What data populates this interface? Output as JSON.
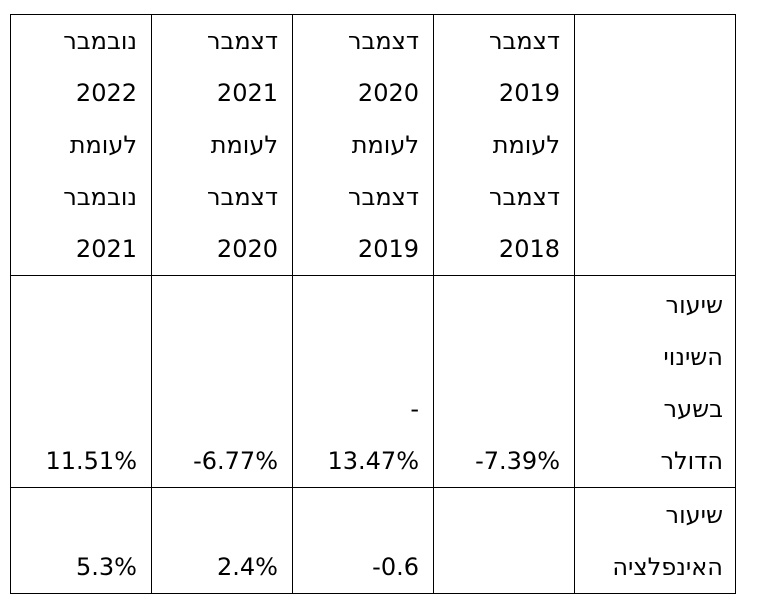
{
  "table": {
    "header": [
      null,
      "דצמבר 2019 לעומת דצמבר 2018",
      "דצמבר 2020 לעומת דצמבר 2019",
      "דצמבר 2021 לעומת דצמבר 2020",
      "נובמבר 2022 לעומת נובמבר 2021"
    ],
    "rows": [
      [
        "שיעור השינוי בשער הדולר",
        "-7.39%",
        "-\n13.47%",
        "-6.77%",
        "11.51%"
      ],
      [
        "שיעור האינפלציה",
        null,
        "-0.6",
        "2.4%",
        "5.3%"
      ]
    ]
  }
}
